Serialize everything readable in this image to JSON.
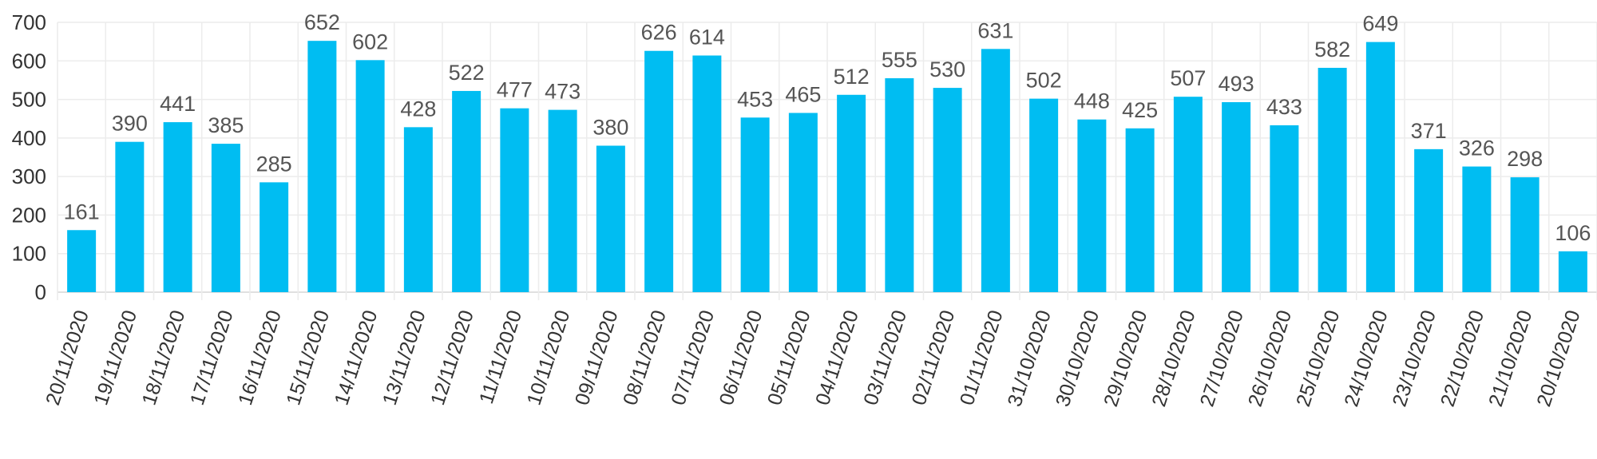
{
  "chart_data": {
    "type": "bar",
    "categories": [
      "20/11/2020",
      "19/11/2020",
      "18/11/2020",
      "17/11/2020",
      "16/11/2020",
      "15/11/2020",
      "14/11/2020",
      "13/11/2020",
      "12/11/2020",
      "11/11/2020",
      "10/11/2020",
      "09/11/2020",
      "08/11/2020",
      "07/11/2020",
      "06/11/2020",
      "05/11/2020",
      "04/11/2020",
      "03/11/2020",
      "02/11/2020",
      "01/11/2020",
      "31/10/2020",
      "30/10/2020",
      "29/10/2020",
      "28/10/2020",
      "27/10/2020",
      "26/10/2020",
      "25/10/2020",
      "24/10/2020",
      "23/10/2020",
      "22/10/2020",
      "21/10/2020",
      "20/10/2020"
    ],
    "values": [
      161,
      390,
      441,
      385,
      285,
      652,
      602,
      428,
      522,
      477,
      473,
      380,
      626,
      614,
      453,
      465,
      512,
      555,
      530,
      631,
      502,
      448,
      425,
      507,
      493,
      433,
      582,
      649,
      371,
      326,
      298,
      106
    ],
    "ylim": [
      0,
      700
    ],
    "yticks": [
      0,
      100,
      200,
      300,
      400,
      500,
      600,
      700
    ],
    "grid": true,
    "legend": "none",
    "bar_color": "#00bdf2"
  }
}
